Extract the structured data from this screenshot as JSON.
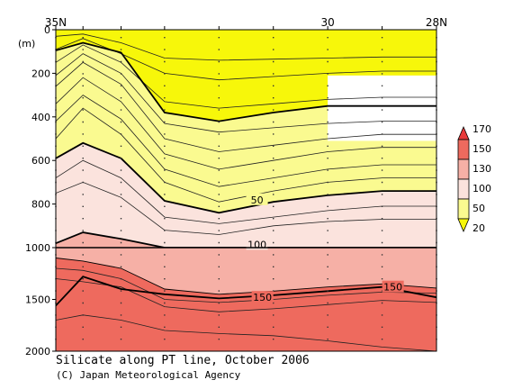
{
  "chart_data": {
    "type": "contour",
    "title": "Silicate along PT line, October 2006",
    "credit": "(C) Japan Meteorological Agency",
    "ylabel": "(m)",
    "y_axis_direction": "depth increasing downward",
    "x_ticks": [
      "35N",
      "30",
      "28N"
    ],
    "y_ticks_upper": [
      "0",
      "200",
      "400",
      "600",
      "800",
      "1000"
    ],
    "y_ticks_lower": [
      "1000",
      "1500",
      "2000"
    ],
    "y_upper_range": [
      0,
      1000
    ],
    "y_lower_range": [
      1000,
      2000
    ],
    "colorbar": {
      "labels": [
        "170",
        "150",
        "130",
        "100",
        "50",
        "20"
      ],
      "colors": [
        "#e83a3a",
        "#ee6a5e",
        "#f6b0a6",
        "#fbe3dd",
        "#fafa90",
        "#f7f70a"
      ]
    },
    "fill_colors": [
      "#f7f70a",
      "#fafa90",
      "#fbe3dd",
      "#f6b0a6",
      "#ee6a5e"
    ],
    "contour_labels": [
      "50",
      "100",
      "150",
      "150"
    ],
    "station_lat": [
      35,
      34.5,
      33.8,
      33.0,
      32.0,
      31.0,
      30.0,
      29.0,
      28.0
    ],
    "contours": {
      "20": [
        95,
        60,
        105,
        380,
        420,
        380,
        350,
        350,
        350
      ],
      "50": [
        590,
        520,
        590,
        785,
        840,
        790,
        760,
        740,
        740
      ],
      "100": [
        980,
        930,
        960,
        1000,
        1000,
        1000,
        1000,
        1000,
        1000
      ],
      "130": [
        1100,
        1130,
        1200,
        1400,
        1450,
        1420,
        1380,
        1350,
        1390
      ],
      "150": [
        1560,
        1280,
        1400,
        1450,
        1490,
        1460,
        1420,
        1380,
        1480
      ]
    },
    "thin_contours_upper": [
      [
        30,
        20,
        60,
        130,
        140,
        135,
        130,
        125,
        125
      ],
      [
        90,
        40,
        110,
        200,
        230,
        215,
        200,
        190,
        190
      ],
      [
        150,
        70,
        150,
        330,
        360,
        340,
        320,
        310,
        310
      ],
      [
        210,
        110,
        200,
        430,
        470,
        450,
        430,
        420,
        420
      ],
      [
        260,
        150,
        250,
        500,
        560,
        530,
        500,
        480,
        480
      ],
      [
        340,
        220,
        330,
        570,
        640,
        600,
        560,
        540,
        540
      ],
      [
        420,
        300,
        410,
        640,
        720,
        680,
        640,
        620,
        620
      ],
      [
        500,
        360,
        480,
        700,
        790,
        740,
        700,
        680,
        680
      ],
      [
        680,
        600,
        680,
        860,
        890,
        860,
        830,
        810,
        810
      ],
      [
        750,
        700,
        770,
        920,
        940,
        900,
        880,
        870,
        870
      ]
    ],
    "thin_contours_lower": [
      [
        1200,
        1220,
        1300,
        1500,
        1530,
        1500,
        1460,
        1430,
        1440
      ],
      [
        1300,
        1330,
        1380,
        1570,
        1620,
        1590,
        1550,
        1510,
        1530
      ],
      [
        1700,
        1650,
        1700,
        1800,
        1830,
        1850,
        1900,
        1960,
        2000
      ]
    ],
    "blank_region": {
      "lat": [
        30,
        28
      ],
      "depth": [
        210,
        510
      ]
    }
  }
}
